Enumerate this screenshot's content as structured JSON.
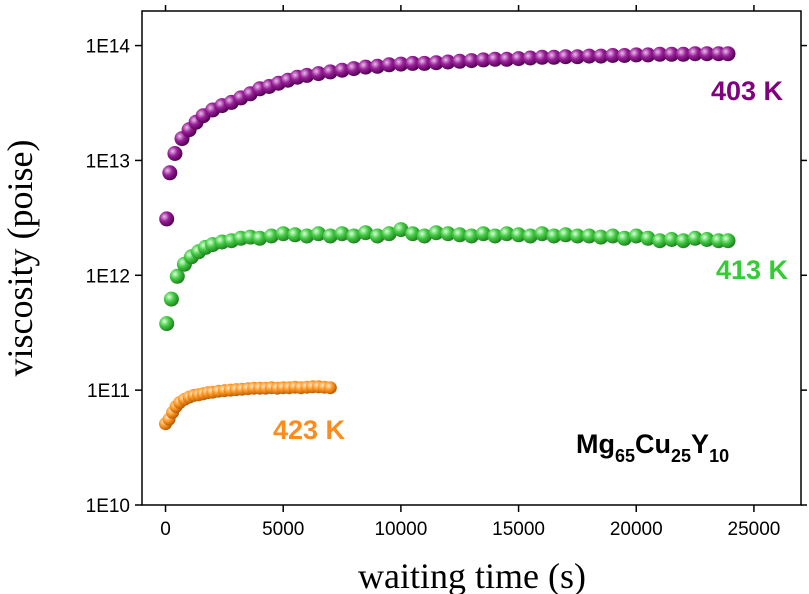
{
  "chart_data": {
    "type": "scatter",
    "xlabel": "waiting time (s)",
    "ylabel": "viscosity (poise)",
    "xlim": [
      -1000,
      27000
    ],
    "ylim": [
      10000000000.0,
      200000000000000.0
    ],
    "y_scale": "log",
    "x_ticks": [
      0,
      5000,
      10000,
      15000,
      20000,
      25000
    ],
    "x_tick_labels": [
      "0",
      "5000",
      "10000",
      "15000",
      "20000",
      "25000"
    ],
    "y_ticks": [
      10000000000.0,
      100000000000.0,
      1000000000000.0,
      10000000000000.0,
      100000000000000.0
    ],
    "y_tick_labels": [
      "1E10",
      "1E11",
      "1E12",
      "1E13",
      "1E14"
    ],
    "grid": false,
    "annotation": {
      "base": [
        "Mg",
        "Cu",
        "Y"
      ],
      "subscripts": [
        "65",
        "25",
        "10"
      ]
    },
    "series": [
      {
        "name": "403 K",
        "color": "#800080",
        "x": [
          50,
          180,
          400,
          700,
          1000,
          1300,
          1600,
          2000,
          2400,
          2800,
          3200,
          3600,
          4000,
          4400,
          4800,
          5200,
          5600,
          6000,
          6500,
          7000,
          7500,
          8000,
          8500,
          9000,
          9500,
          10000,
          10500,
          11000,
          11500,
          12000,
          12500,
          13000,
          13500,
          14000,
          14500,
          15000,
          15500,
          16000,
          16500,
          17000,
          17500,
          18000,
          18500,
          19000,
          19500,
          20000,
          20500,
          21000,
          21500,
          22000,
          22500,
          23000,
          23500,
          23900
        ],
        "y": [
          3100000000000.0,
          7800000000000.0,
          11500000000000.0,
          15500000000000.0,
          18500000000000.0,
          21500000000000.0,
          24500000000000.0,
          27500000000000.0,
          30000000000000.0,
          32000000000000.0,
          35000000000000.0,
          38000000000000.0,
          42000000000000.0,
          44000000000000.0,
          47000000000000.0,
          50000000000000.0,
          53000000000000.0,
          55000000000000.0,
          57000000000000.0,
          59000000000000.0,
          61000000000000.0,
          63000000000000.0,
          65000000000000.0,
          66000000000000.0,
          68000000000000.0,
          69000000000000.0,
          70000000000000.0,
          70000000000000.0,
          71000000000000.0,
          72000000000000.0,
          73000000000000.0,
          74000000000000.0,
          75000000000000.0,
          76000000000000.0,
          76000000000000.0,
          77000000000000.0,
          78000000000000.0,
          79000000000000.0,
          79000000000000.0,
          80000000000000.0,
          80000000000000.0,
          81000000000000.0,
          81000000000000.0,
          82000000000000.0,
          82000000000000.0,
          83000000000000.0,
          83000000000000.0,
          84000000000000.0,
          84000000000000.0,
          84000000000000.0,
          85000000000000.0,
          85000000000000.0,
          85000000000000.0,
          85000000000000.0
        ]
      },
      {
        "name": "413 K",
        "color": "#33cc33",
        "x": [
          50,
          250,
          500,
          800,
          1100,
          1400,
          1700,
          2000,
          2400,
          2800,
          3200,
          3600,
          4000,
          4500,
          5000,
          5500,
          6000,
          6500,
          7000,
          7500,
          8000,
          8500,
          9000,
          9500,
          10000,
          10500,
          11000,
          11500,
          12000,
          12500,
          13000,
          13500,
          14000,
          14500,
          15000,
          15500,
          16000,
          16500,
          17000,
          17500,
          18000,
          18500,
          19000,
          19500,
          20000,
          20500,
          21000,
          21500,
          22000,
          22500,
          23000,
          23500,
          23900
        ],
        "y": [
          380000000000.0,
          620000000000.0,
          980000000000.0,
          1250000000000.0,
          1450000000000.0,
          1600000000000.0,
          1750000000000.0,
          1850000000000.0,
          1950000000000.0,
          2000000000000.0,
          2100000000000.0,
          2150000000000.0,
          2100000000000.0,
          2200000000000.0,
          2300000000000.0,
          2250000000000.0,
          2200000000000.0,
          2300000000000.0,
          2200000000000.0,
          2300000000000.0,
          2200000000000.0,
          2350000000000.0,
          2200000000000.0,
          2300000000000.0,
          2500000000000.0,
          2300000000000.0,
          2200000000000.0,
          2350000000000.0,
          2300000000000.0,
          2250000000000.0,
          2200000000000.0,
          2300000000000.0,
          2200000000000.0,
          2300000000000.0,
          2250000000000.0,
          2200000000000.0,
          2300000000000.0,
          2200000000000.0,
          2250000000000.0,
          2200000000000.0,
          2200000000000.0,
          2150000000000.0,
          2200000000000.0,
          2100000000000.0,
          2200000000000.0,
          2100000000000.0,
          2000000000000.0,
          2050000000000.0,
          2000000000000.0,
          2100000000000.0,
          2050000000000.0,
          2000000000000.0,
          2000000000000.0
        ]
      },
      {
        "name": "423 K",
        "color": "#ff8c1a",
        "x": [
          0,
          150,
          300,
          450,
          600,
          800,
          1000,
          1200,
          1400,
          1600,
          1800,
          2000,
          2250,
          2500,
          2750,
          3000,
          3250,
          3500,
          3750,
          4000,
          4250,
          4500,
          4750,
          5000,
          5250,
          5500,
          5750,
          6000,
          6250,
          6500,
          6750,
          7000
        ],
        "y": [
          51000000000.0,
          56000000000.0,
          64000000000.0,
          72000000000.0,
          78000000000.0,
          83000000000.0,
          87000000000.0,
          90000000000.0,
          91000000000.0,
          93000000000.0,
          95000000000.0,
          96000000000.0,
          98000000000.0,
          99000000000.0,
          100000000000.0,
          101000000000.0,
          102000000000.0,
          103000000000.0,
          104000000000.0,
          104000000000.0,
          104000000000.0,
          105000000000.0,
          104000000000.0,
          105000000000.0,
          105000000000.0,
          106000000000.0,
          105000000000.0,
          106000000000.0,
          107000000000.0,
          107000000000.0,
          106000000000.0,
          105000000000.0
        ]
      }
    ]
  }
}
